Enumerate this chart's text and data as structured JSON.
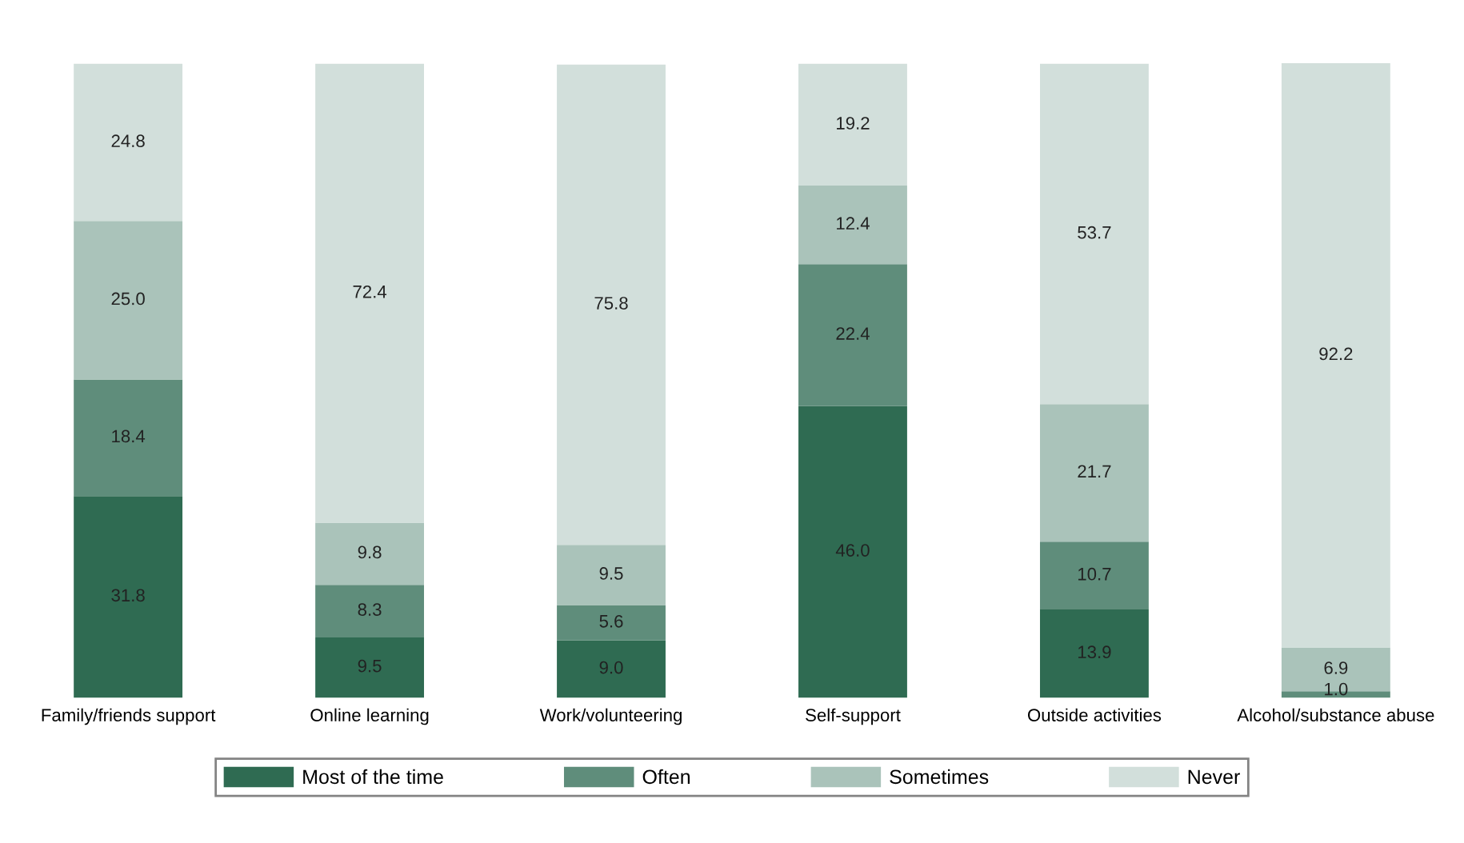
{
  "chart_data": {
    "type": "bar",
    "stacked": true,
    "categories": [
      "Family/friends support",
      "Online learning",
      "Work/volunteering",
      "Self-support",
      "Outside activities",
      "Alcohol/substance abuse"
    ],
    "series": [
      {
        "name": "Most of the time",
        "color": "#2f6b52",
        "values": [
          31.8,
          9.5,
          9.0,
          46.0,
          13.9,
          null
        ],
        "value_labels": [
          "31.8",
          "9.5",
          "9.0",
          "46.0",
          "13.9",
          null
        ]
      },
      {
        "name": "Often",
        "color": "#5f8d7b",
        "values": [
          18.4,
          8.3,
          5.6,
          22.4,
          10.7,
          1.0
        ],
        "value_labels": [
          "18.4",
          "8.3",
          "5.6",
          "22.4",
          "10.7",
          "1.0"
        ]
      },
      {
        "name": "Sometimes",
        "color": "#aac3ba",
        "values": [
          25.0,
          9.8,
          9.5,
          12.4,
          21.7,
          6.9
        ],
        "value_labels": [
          "25.0",
          "9.8",
          "9.5",
          "12.4",
          "21.7",
          "6.9"
        ]
      },
      {
        "name": "Never",
        "color": "#d2dfdb",
        "values": [
          24.8,
          72.4,
          75.8,
          19.2,
          53.7,
          92.2
        ],
        "value_labels": [
          "24.8",
          "72.4",
          "75.8",
          "19.2",
          "53.7",
          "92.2"
        ]
      }
    ],
    "legend": "bottom",
    "grid": false
  }
}
